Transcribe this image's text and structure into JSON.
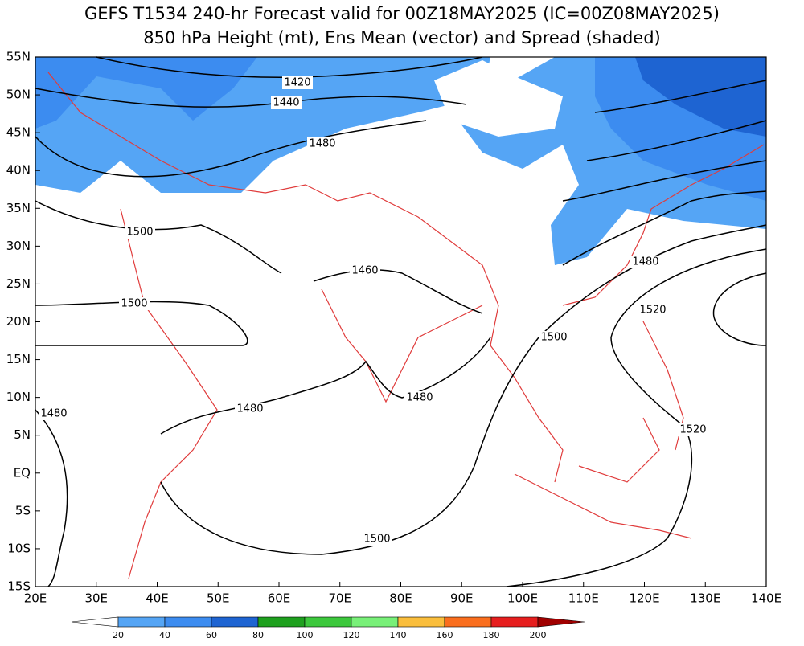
{
  "title": [
    "GEFS T1534 240-hr Forecast valid for 00Z18MAY2025 (IC=00Z08MAY2025)",
    "850 hPa Height (mt), Ens Mean (vector) and Spread (shaded)"
  ],
  "map": {
    "lon_ticks": [
      {
        "value": 20,
        "label": "20E"
      },
      {
        "value": 30,
        "label": "30E"
      },
      {
        "value": 40,
        "label": "40E"
      },
      {
        "value": 50,
        "label": "50E"
      },
      {
        "value": 60,
        "label": "60E"
      },
      {
        "value": 70,
        "label": "70E"
      },
      {
        "value": 80,
        "label": "80E"
      },
      {
        "value": 90,
        "label": "90E"
      },
      {
        "value": 100,
        "label": "100E"
      },
      {
        "value": 110,
        "label": "110E"
      },
      {
        "value": 120,
        "label": "120E"
      },
      {
        "value": 130,
        "label": "130E"
      },
      {
        "value": 140,
        "label": "140E"
      }
    ],
    "lat_ticks": [
      {
        "value": 55,
        "label": "55N"
      },
      {
        "value": 50,
        "label": "50N"
      },
      {
        "value": 45,
        "label": "45N"
      },
      {
        "value": 40,
        "label": "40N"
      },
      {
        "value": 35,
        "label": "35N"
      },
      {
        "value": 30,
        "label": "30N"
      },
      {
        "value": 25,
        "label": "25N"
      },
      {
        "value": 20,
        "label": "20N"
      },
      {
        "value": 15,
        "label": "15N"
      },
      {
        "value": 10,
        "label": "10N"
      },
      {
        "value": 5,
        "label": "5N"
      },
      {
        "value": 0,
        "label": "EQ"
      },
      {
        "value": -5,
        "label": "5S"
      },
      {
        "value": -10,
        "label": "10S"
      },
      {
        "value": -15,
        "label": "15S"
      }
    ],
    "contour_labels": [
      1420,
      1440,
      1480,
      1500,
      1500,
      1460,
      1480,
      1520,
      1500,
      1480,
      1480,
      1480,
      1520,
      1500
    ]
  },
  "colorbar": {
    "levels": [
      20,
      40,
      60,
      80,
      100,
      120,
      140,
      160,
      180,
      200
    ],
    "colors": [
      "#ffffff",
      "#55a5f5",
      "#3c8cf0",
      "#1e64d2",
      "#1ea01e",
      "#3cc83c",
      "#78f078",
      "#fabe3c",
      "#fa6e1e",
      "#e61e1e",
      "#a00000"
    ]
  }
}
